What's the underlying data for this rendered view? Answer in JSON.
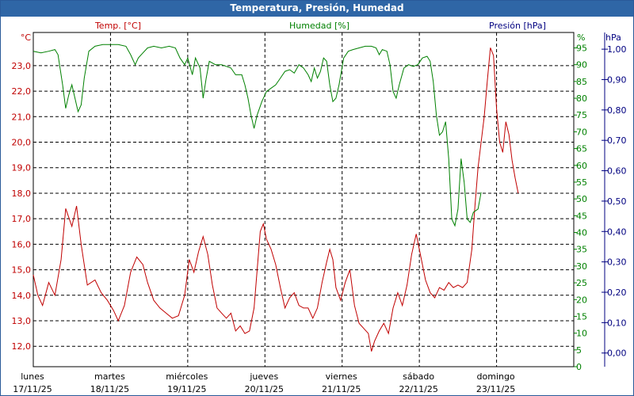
{
  "chart_data": {
    "type": "line",
    "title": "Temperatura, Presión, Humedad",
    "grid": true,
    "axes": {
      "temperature": {
        "label": "Temp. [°C]",
        "unit": "°C",
        "color": "#c00000",
        "ticks": [
          "12,0",
          "13,0",
          "14,0",
          "15,0",
          "16,0",
          "17,0",
          "18,0",
          "19,0",
          "20,0",
          "21,0",
          "22,0",
          "23,0"
        ],
        "range": [
          11.2,
          24.3
        ]
      },
      "humidity": {
        "label": "Humedad [%]",
        "unit": "%",
        "color": "#008000",
        "ticks": [
          "0",
          "5",
          "10",
          "15",
          "20",
          "25",
          "30",
          "35",
          "40",
          "45",
          "50",
          "55",
          "60",
          "65",
          "70",
          "75",
          "80",
          "85",
          "90",
          "95"
        ],
        "range": [
          0,
          99.6
        ]
      },
      "pressure": {
        "label": "Presión [hPa]",
        "unit": "hPa",
        "color": "#000080",
        "ticks": [
          "0,00",
          "0,10",
          "0,20",
          "0,30",
          "0,40",
          "0,50",
          "0,60",
          "0,70",
          "0,80",
          "0,90",
          "1,00"
        ],
        "range": [
          -0.045,
          1.055
        ]
      },
      "x": {
        "range": [
          0,
          7
        ],
        "days": [
          {
            "name": "lunes",
            "date": "17/11/25"
          },
          {
            "name": "martes",
            "date": "18/11/25"
          },
          {
            "name": "miércoles",
            "date": "19/11/25"
          },
          {
            "name": "jueves",
            "date": "20/11/25"
          },
          {
            "name": "viernes",
            "date": "21/11/25"
          },
          {
            "name": "sábado",
            "date": "22/11/25"
          },
          {
            "name": "domingo",
            "date": "23/11/25"
          }
        ]
      }
    },
    "series": [
      {
        "name": "Temp. [°C]",
        "axis": "temperature",
        "color": "#c00000",
        "points": [
          [
            0.0,
            14.8
          ],
          [
            0.06,
            14.0
          ],
          [
            0.12,
            13.6
          ],
          [
            0.2,
            14.5
          ],
          [
            0.28,
            14.0
          ],
          [
            0.36,
            15.4
          ],
          [
            0.42,
            17.4
          ],
          [
            0.5,
            16.7
          ],
          [
            0.56,
            17.5
          ],
          [
            0.62,
            16.0
          ],
          [
            0.7,
            14.4
          ],
          [
            0.8,
            14.6
          ],
          [
            0.88,
            14.1
          ],
          [
            0.96,
            13.8
          ],
          [
            1.04,
            13.4
          ],
          [
            1.1,
            13.0
          ],
          [
            1.18,
            13.6
          ],
          [
            1.26,
            14.9
          ],
          [
            1.34,
            15.5
          ],
          [
            1.42,
            15.2
          ],
          [
            1.48,
            14.5
          ],
          [
            1.56,
            13.8
          ],
          [
            1.64,
            13.5
          ],
          [
            1.72,
            13.3
          ],
          [
            1.8,
            13.1
          ],
          [
            1.88,
            13.2
          ],
          [
            1.96,
            14.0
          ],
          [
            2.02,
            15.4
          ],
          [
            2.08,
            14.9
          ],
          [
            2.14,
            15.7
          ],
          [
            2.2,
            16.3
          ],
          [
            2.26,
            15.6
          ],
          [
            2.32,
            14.4
          ],
          [
            2.38,
            13.5
          ],
          [
            2.44,
            13.3
          ],
          [
            2.5,
            13.1
          ],
          [
            2.56,
            13.3
          ],
          [
            2.62,
            12.6
          ],
          [
            2.68,
            12.8
          ],
          [
            2.74,
            12.5
          ],
          [
            2.8,
            12.6
          ],
          [
            2.86,
            13.5
          ],
          [
            2.9,
            15.0
          ],
          [
            2.94,
            16.5
          ],
          [
            2.98,
            16.8
          ],
          [
            3.02,
            16.2
          ],
          [
            3.08,
            15.8
          ],
          [
            3.14,
            15.2
          ],
          [
            3.2,
            14.3
          ],
          [
            3.26,
            13.5
          ],
          [
            3.32,
            13.9
          ],
          [
            3.38,
            14.1
          ],
          [
            3.44,
            13.6
          ],
          [
            3.5,
            13.5
          ],
          [
            3.56,
            13.5
          ],
          [
            3.62,
            13.1
          ],
          [
            3.68,
            13.5
          ],
          [
            3.74,
            14.5
          ],
          [
            3.8,
            15.3
          ],
          [
            3.84,
            15.8
          ],
          [
            3.88,
            15.4
          ],
          [
            3.92,
            14.3
          ],
          [
            3.98,
            13.8
          ],
          [
            4.04,
            14.5
          ],
          [
            4.1,
            15.0
          ],
          [
            4.16,
            13.6
          ],
          [
            4.22,
            12.9
          ],
          [
            4.28,
            12.7
          ],
          [
            4.34,
            12.5
          ],
          [
            4.38,
            11.8
          ],
          [
            4.42,
            12.2
          ],
          [
            4.48,
            12.6
          ],
          [
            4.54,
            12.9
          ],
          [
            4.6,
            12.5
          ],
          [
            4.66,
            13.5
          ],
          [
            4.72,
            14.1
          ],
          [
            4.78,
            13.6
          ],
          [
            4.84,
            14.4
          ],
          [
            4.9,
            15.6
          ],
          [
            4.96,
            16.4
          ],
          [
            5.02,
            15.5
          ],
          [
            5.08,
            14.6
          ],
          [
            5.14,
            14.1
          ],
          [
            5.2,
            13.9
          ],
          [
            5.26,
            14.3
          ],
          [
            5.32,
            14.2
          ],
          [
            5.38,
            14.5
          ],
          [
            5.44,
            14.3
          ],
          [
            5.5,
            14.4
          ],
          [
            5.56,
            14.3
          ],
          [
            5.62,
            14.5
          ],
          [
            5.68,
            15.8
          ],
          [
            5.72,
            17.5
          ],
          [
            5.76,
            19.0
          ],
          [
            5.8,
            20.0
          ],
          [
            5.84,
            21.0
          ],
          [
            5.88,
            22.4
          ],
          [
            5.92,
            23.7
          ],
          [
            5.96,
            23.4
          ],
          [
            6.0,
            21.3
          ],
          [
            6.04,
            20.0
          ],
          [
            6.08,
            19.6
          ],
          [
            6.12,
            20.8
          ],
          [
            6.16,
            20.3
          ],
          [
            6.2,
            19.3
          ],
          [
            6.24,
            18.6
          ],
          [
            6.28,
            18.0
          ]
        ]
      },
      {
        "name": "Humedad [%]",
        "axis": "humidity",
        "color": "#008000",
        "points": [
          [
            0.0,
            94.0
          ],
          [
            0.1,
            93.5
          ],
          [
            0.2,
            94.0
          ],
          [
            0.28,
            94.5
          ],
          [
            0.32,
            93.0
          ],
          [
            0.38,
            84.0
          ],
          [
            0.42,
            77.0
          ],
          [
            0.46,
            81.0
          ],
          [
            0.5,
            84.0
          ],
          [
            0.54,
            80.0
          ],
          [
            0.58,
            76.0
          ],
          [
            0.62,
            78.0
          ],
          [
            0.66,
            86.0
          ],
          [
            0.72,
            94.0
          ],
          [
            0.8,
            95.5
          ],
          [
            0.9,
            96.0
          ],
          [
            1.0,
            96.0
          ],
          [
            1.1,
            96.0
          ],
          [
            1.2,
            95.5
          ],
          [
            1.26,
            93.0
          ],
          [
            1.32,
            90.0
          ],
          [
            1.36,
            92.0
          ],
          [
            1.42,
            93.5
          ],
          [
            1.48,
            95.0
          ],
          [
            1.56,
            95.5
          ],
          [
            1.66,
            95.0
          ],
          [
            1.76,
            95.5
          ],
          [
            1.84,
            95.0
          ],
          [
            1.9,
            92.0
          ],
          [
            1.96,
            90.0
          ],
          [
            2.0,
            92.0
          ],
          [
            2.06,
            87.0
          ],
          [
            2.1,
            92.0
          ],
          [
            2.16,
            89.0
          ],
          [
            2.2,
            80.0
          ],
          [
            2.24,
            86.0
          ],
          [
            2.28,
            91.0
          ],
          [
            2.36,
            90.0
          ],
          [
            2.44,
            90.0
          ],
          [
            2.5,
            89.5
          ],
          [
            2.56,
            89.0
          ],
          [
            2.62,
            87.0
          ],
          [
            2.7,
            87.0
          ],
          [
            2.74,
            84.0
          ],
          [
            2.78,
            80.0
          ],
          [
            2.82,
            75.0
          ],
          [
            2.86,
            71.0
          ],
          [
            2.9,
            75.0
          ],
          [
            2.96,
            79.0
          ],
          [
            3.02,
            82.0
          ],
          [
            3.08,
            83.0
          ],
          [
            3.14,
            84.0
          ],
          [
            3.2,
            86.0
          ],
          [
            3.26,
            88.0
          ],
          [
            3.32,
            88.5
          ],
          [
            3.38,
            87.5
          ],
          [
            3.44,
            90.0
          ],
          [
            3.5,
            89.0
          ],
          [
            3.56,
            87.0
          ],
          [
            3.6,
            85.0
          ],
          [
            3.64,
            89.0
          ],
          [
            3.68,
            86.0
          ],
          [
            3.72,
            88.0
          ],
          [
            3.76,
            92.0
          ],
          [
            3.8,
            91.0
          ],
          [
            3.84,
            84.0
          ],
          [
            3.88,
            79.0
          ],
          [
            3.92,
            80.0
          ],
          [
            3.96,
            84.0
          ],
          [
            4.02,
            92.0
          ],
          [
            4.08,
            94.0
          ],
          [
            4.14,
            94.5
          ],
          [
            4.22,
            95.0
          ],
          [
            4.3,
            95.5
          ],
          [
            4.38,
            95.5
          ],
          [
            4.44,
            95.0
          ],
          [
            4.48,
            93.0
          ],
          [
            4.52,
            94.5
          ],
          [
            4.58,
            94.0
          ],
          [
            4.62,
            90.0
          ],
          [
            4.66,
            82.0
          ],
          [
            4.7,
            80.0
          ],
          [
            4.74,
            84.0
          ],
          [
            4.8,
            89.0
          ],
          [
            4.86,
            90.0
          ],
          [
            4.92,
            89.5
          ],
          [
            4.98,
            90.0
          ],
          [
            5.04,
            92.0
          ],
          [
            5.1,
            92.5
          ],
          [
            5.14,
            91.0
          ],
          [
            5.18,
            85.0
          ],
          [
            5.22,
            75.0
          ],
          [
            5.26,
            69.0
          ],
          [
            5.3,
            70.0
          ],
          [
            5.34,
            73.0
          ],
          [
            5.38,
            62.0
          ],
          [
            5.42,
            44.0
          ],
          [
            5.46,
            42.0
          ],
          [
            5.5,
            47.0
          ],
          [
            5.54,
            62.0
          ],
          [
            5.58,
            55.0
          ],
          [
            5.62,
            44.0
          ],
          [
            5.66,
            43.0
          ],
          [
            5.7,
            46.0
          ],
          [
            5.76,
            47.0
          ],
          [
            5.8,
            52.0
          ]
        ]
      }
    ]
  }
}
